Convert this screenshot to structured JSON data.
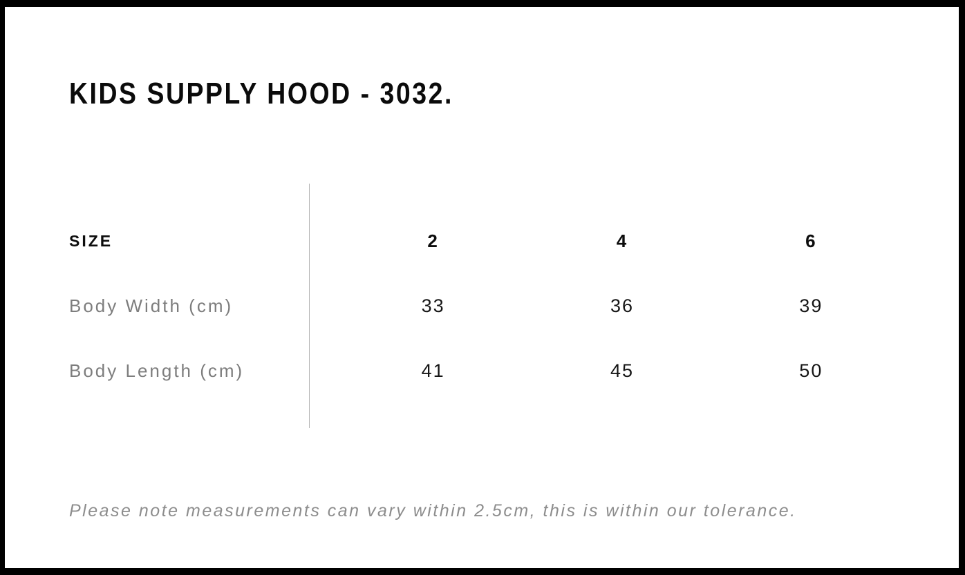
{
  "title": "KIDS SUPPLY HOOD - 3032.",
  "table": {
    "header": {
      "label": "SIZE",
      "sizes": [
        "2",
        "4",
        "6"
      ]
    },
    "rows": [
      {
        "label": "Body Width (cm)",
        "values": [
          "33",
          "36",
          "39"
        ]
      },
      {
        "label": "Body Length (cm)",
        "values": [
          "41",
          "45",
          "50"
        ]
      }
    ]
  },
  "note": "Please note measurements can vary within 2.5cm, this is within our tolerance.",
  "colors": {
    "frame": "#000000",
    "background": "#ffffff",
    "heading_text": "#0b0b0b",
    "value_text": "#161616",
    "row_label_text": "#7d7d7d",
    "note_text": "#8d8d8d",
    "divider": "#b3b3b3"
  }
}
